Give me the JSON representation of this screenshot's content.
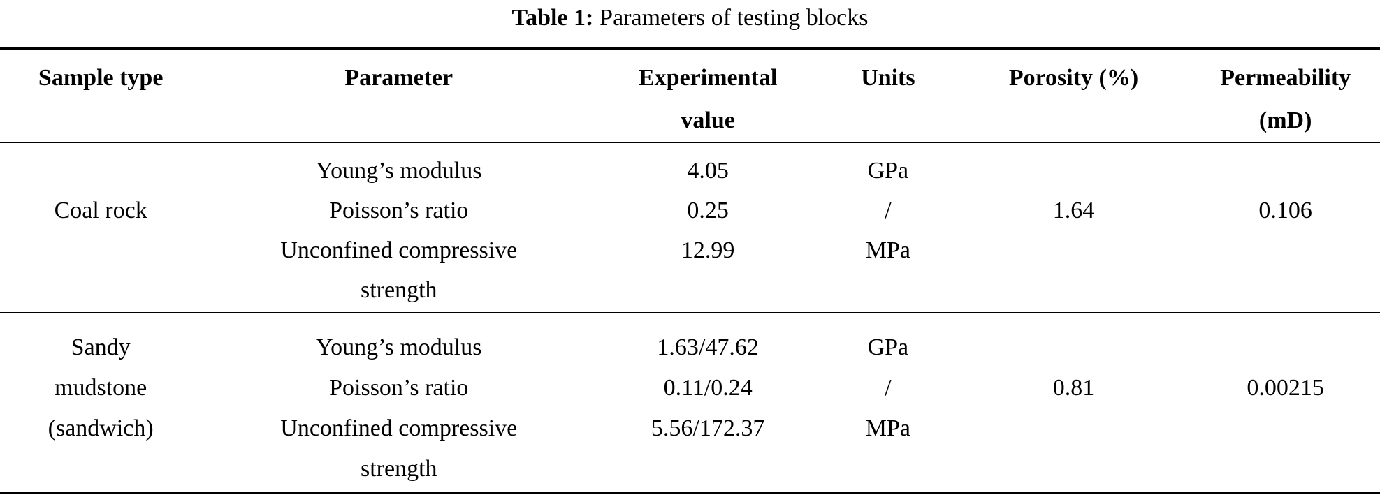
{
  "page": {
    "background": "#ffffff",
    "text_color": "#000000"
  },
  "caption": {
    "label": "Table 1:",
    "text": "Parameters of testing blocks"
  },
  "header": {
    "sample_type": "Sample type",
    "parameter": "Parameter",
    "experimental_value_lines": [
      "Experimental",
      "value"
    ],
    "units": "Units",
    "porosity": "Porosity (%)",
    "permeability_lines": [
      "Permeability",
      "(mD)"
    ]
  },
  "groups": [
    {
      "sample_type_lines": [
        "Coal rock"
      ],
      "parameters": [
        {
          "name_lines": [
            "Young’s modulus",
            ""
          ],
          "value": "4.05",
          "units": "GPa"
        },
        {
          "name_lines": [
            "Poisson’s ratio",
            ""
          ],
          "value": "0.25",
          "units": "/"
        },
        {
          "name_lines": [
            "Unconfined compressive",
            "strength"
          ],
          "value": "12.99",
          "units": "MPa"
        }
      ],
      "porosity": "1.64",
      "permeability": "0.106"
    },
    {
      "sample_type_lines": [
        "Sandy",
        "mudstone",
        "(sandwich)"
      ],
      "parameters": [
        {
          "name_lines": [
            "Young’s modulus",
            ""
          ],
          "value": "1.63/47.62",
          "units": "GPa"
        },
        {
          "name_lines": [
            "Poisson’s ratio",
            ""
          ],
          "value": "0.11/0.24",
          "units": "/"
        },
        {
          "name_lines": [
            "Unconfined compressive",
            "strength"
          ],
          "value": "5.56/172.37",
          "units": "MPa"
        }
      ],
      "porosity": "0.81",
      "permeability": "0.00215"
    }
  ]
}
